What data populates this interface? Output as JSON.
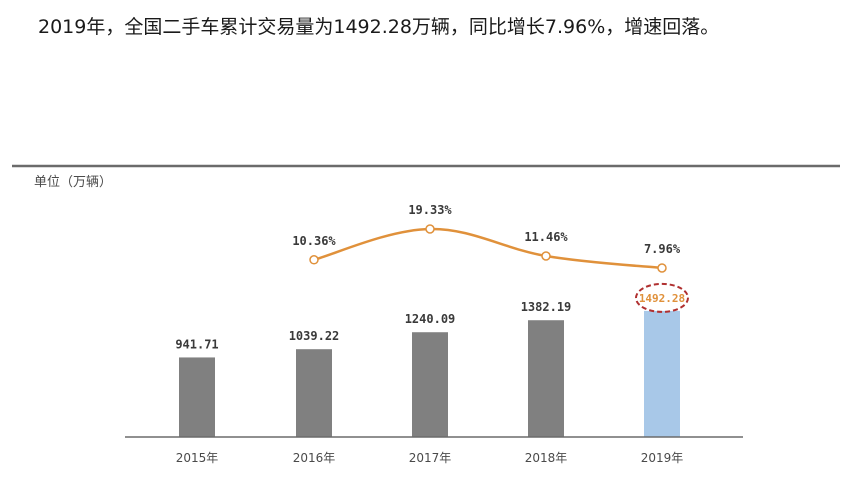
{
  "headline": "2019年，全国二手车累计交易量为1492.28万辆，同比增长7.96%，增速回落。",
  "chart_data": {
    "type": "bar",
    "unit_label": "单位（万辆）",
    "categories": [
      "2015年",
      "2016年",
      "2017年",
      "2018年",
      "2019年"
    ],
    "series": [
      {
        "type": "bar",
        "values": [
          941.71,
          1039.22,
          1240.09,
          1382.19,
          1492.28
        ],
        "value_labels": [
          "941.71",
          "1039.22",
          "1240.09",
          "1382.19",
          "1492.28"
        ]
      },
      {
        "type": "line",
        "values": [
          null,
          10.36,
          19.33,
          11.46,
          7.96
        ],
        "value_labels": [
          "",
          "10.36%",
          "19.33%",
          "11.46%",
          "7.96%"
        ]
      }
    ],
    "highlight_index": 4,
    "colors": {
      "bar": "#808080",
      "bar_highlight": "#a8c8e8",
      "line": "#e0913b",
      "highlight_label": "#e0913b",
      "highlight_ring": "#b03030",
      "baseline": "#6b6b6b"
    },
    "grid": false,
    "legend": "none"
  }
}
